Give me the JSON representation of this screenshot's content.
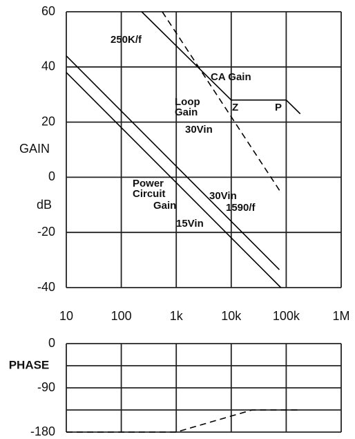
{
  "chart_data": [
    {
      "type": "line",
      "xlog": true,
      "grid": true,
      "xlim": [
        10,
        1000000
      ],
      "xticks": [
        10,
        100,
        {
          "value": 1000,
          "label": "1k"
        },
        {
          "value": 10000,
          "label": "10k"
        },
        {
          "value": 100000,
          "label": "100k"
        },
        {
          "value": 1000000,
          "label": "1M"
        }
      ],
      "ylim": [
        -40,
        60
      ],
      "yticks": [
        60,
        40,
        20,
        0,
        -20,
        -40
      ],
      "ylabel": [
        "GAIN",
        "dB"
      ],
      "series": [
        {
          "color": "#000000",
          "dashed": false,
          "x": [
            10,
            75000
          ],
          "values": [
            44,
            -33.5
          ]
        },
        {
          "color": "#000000",
          "dashed": false,
          "x": [
            10,
            80000
          ],
          "values": [
            38,
            -40
          ]
        },
        {
          "color": "#000000",
          "dashed": true,
          "x": [
            557,
            83000
          ],
          "values": [
            60,
            -6
          ]
        },
        {
          "color": "#000000",
          "dashed": false,
          "x": [
            235,
            10000,
            100000,
            180000
          ],
          "values": [
            60,
            28,
            28,
            23
          ]
        }
      ],
      "annotations": [
        "250K/f",
        "CA Gain",
        "Loop Gain",
        "Z",
        "P",
        "30Vin",
        "Power Circuit Gain",
        "30Vin",
        "1590/f",
        "15Vin"
      ]
    },
    {
      "type": "line",
      "xlog": true,
      "grid": true,
      "xlim": [
        10,
        1000000
      ],
      "xgrid": [
        10,
        100,
        1000,
        10000,
        100000,
        1000000
      ],
      "ylim": [
        -180,
        0
      ],
      "yticks": [
        0,
        -90,
        -180
      ],
      "ygrid": [
        0,
        -45,
        -90,
        -135,
        -180
      ],
      "ylabel": "PHASE",
      "series": [
        {
          "color": "#000000",
          "dashed": true,
          "x": [
            10,
            1000,
            24000,
            160000
          ],
          "values": [
            -180,
            -180,
            -135,
            -135
          ]
        }
      ]
    }
  ]
}
